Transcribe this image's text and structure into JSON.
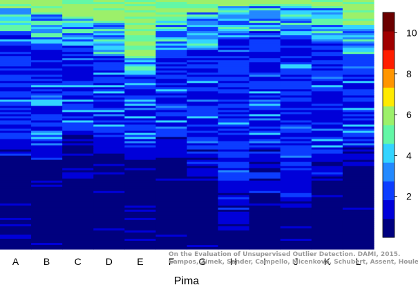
{
  "chart_data": {
    "type": "heatmap",
    "title": "",
    "xlabel": "Pima",
    "ylabel": "",
    "columns": [
      "A",
      "B",
      "C",
      "D",
      "E",
      "F",
      "G",
      "H",
      "I",
      "J",
      "K",
      "L"
    ],
    "colorbar": {
      "min": 0,
      "max": 11,
      "ticks": [
        2,
        4,
        6,
        8,
        10
      ],
      "colors": [
        "#00007F",
        "#0000D9",
        "#0C3DFF",
        "#2389FF",
        "#33D4FF",
        "#63F7A6",
        "#9CF06A",
        "#FFEA00",
        "#FF9500",
        "#FF1E00",
        "#A00000",
        "#6B0000"
      ]
    },
    "columns_profile": [
      {
        "col": "A",
        "green_top": 0.03,
        "cyan_band_end": 0.12,
        "midblue_end": 0.55,
        "dark_from": 0.62
      },
      {
        "col": "B",
        "green_top": 0.05,
        "cyan_band_end": 0.15,
        "midblue_end": 0.58,
        "dark_from": 0.64
      },
      {
        "col": "C",
        "green_top": 0.06,
        "cyan_band_end": 0.18,
        "midblue_end": 0.52,
        "dark_from": 0.58
      },
      {
        "col": "D",
        "green_top": 0.08,
        "cyan_band_end": 0.22,
        "midblue_end": 0.55,
        "dark_from": 0.62
      },
      {
        "col": "E",
        "green_top": 0.22,
        "cyan_band_end": 0.3,
        "midblue_end": 0.6,
        "dark_from": 0.64
      },
      {
        "col": "F",
        "green_top": 0.08,
        "cyan_band_end": 0.2,
        "midblue_end": 0.55,
        "dark_from": 0.64
      },
      {
        "col": "G",
        "green_top": 0.05,
        "cyan_band_end": 0.2,
        "midblue_end": 0.6,
        "dark_from": 0.72
      },
      {
        "col": "H",
        "green_top": 0.02,
        "cyan_band_end": 0.15,
        "midblue_end": 0.72,
        "dark_from": 0.92
      },
      {
        "col": "I",
        "green_top": 0.01,
        "cyan_band_end": 0.12,
        "midblue_end": 0.6,
        "dark_from": 0.78
      },
      {
        "col": "J",
        "green_top": 0.02,
        "cyan_band_end": 0.14,
        "midblue_end": 0.7,
        "dark_from": 0.84
      },
      {
        "col": "K",
        "green_top": 0.02,
        "cyan_band_end": 0.16,
        "midblue_end": 0.62,
        "dark_from": 0.72
      },
      {
        "col": "L",
        "green_top": 0.1,
        "cyan_band_end": 0.22,
        "midblue_end": 0.58,
        "dark_from": 0.66
      }
    ]
  },
  "credit": {
    "line1": "On the Evaluation of Unsupervised Outlier Detection. DAMI, 2015.",
    "line2": "Campos, Zimek, Sander, Campello, Micenkova, Schubert, Assent, Houle"
  }
}
